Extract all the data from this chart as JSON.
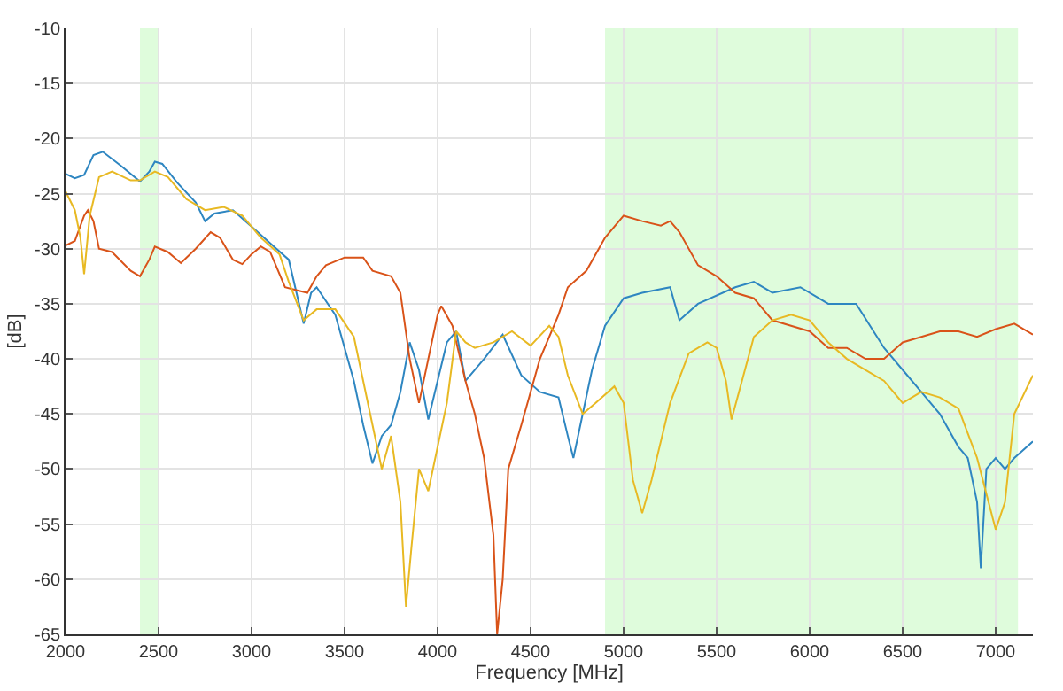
{
  "chart_data": {
    "type": "line",
    "xlabel": "Frequency [MHz]",
    "ylabel": "[dB]",
    "xlim": [
      2000,
      7200
    ],
    "xticks": [
      2000,
      2500,
      3000,
      3500,
      4000,
      4500,
      5000,
      5500,
      6000,
      6500,
      7000
    ],
    "ylim": [
      -65,
      -10
    ],
    "yticks": [
      -65,
      -60,
      -55,
      -50,
      -45,
      -40,
      -35,
      -30,
      -25,
      -20,
      -15,
      -10
    ],
    "grid": true,
    "marker": "none",
    "line_style": "solid",
    "bands": [
      {
        "axis": "x",
        "from": 2400,
        "to": 2500,
        "color": "#dffcdc"
      },
      {
        "axis": "x",
        "from": 4900,
        "to": 7120,
        "color": "#dffcdc"
      }
    ],
    "series": [
      {
        "color": "#2e86c1",
        "x": [
          2000,
          2050,
          2100,
          2150,
          2200,
          2300,
          2400,
          2450,
          2480,
          2520,
          2600,
          2700,
          2750,
          2800,
          2900,
          3000,
          3100,
          3200,
          3280,
          3320,
          3350,
          3450,
          3550,
          3600,
          3650,
          3700,
          3750,
          3800,
          3850,
          3900,
          3950,
          4000,
          4050,
          4100,
          4150,
          4250,
          4350,
          4450,
          4550,
          4650,
          4700,
          4730,
          4780,
          4830,
          4900,
          5000,
          5100,
          5250,
          5300,
          5400,
          5600,
          5700,
          5800,
          5950,
          6100,
          6250,
          6400,
          6500,
          6600,
          6700,
          6800,
          6850,
          6900,
          6920,
          6950,
          7000,
          7050,
          7100,
          7200
        ],
        "values": [
          -23.2,
          -23.6,
          -23.3,
          -21.5,
          -21.2,
          -22.5,
          -23.9,
          -23,
          -22.1,
          -22.3,
          -24,
          -25.8,
          -27.5,
          -26.8,
          -26.5,
          -28,
          -29.5,
          -31,
          -36.8,
          -34,
          -33.5,
          -36,
          -42,
          -46,
          -49.5,
          -47,
          -46,
          -43,
          -38.5,
          -41,
          -45.5,
          -42,
          -38.5,
          -37.5,
          -42,
          -40,
          -37.8,
          -41.5,
          -43,
          -43.5,
          -47,
          -49,
          -45,
          -41,
          -37,
          -34.5,
          -34,
          -33.5,
          -36.5,
          -35,
          -33.5,
          -33,
          -34,
          -33.5,
          -35,
          -35,
          -39,
          -41,
          -43,
          -45,
          -48,
          -49,
          -53,
          -59,
          -50,
          -49,
          -50,
          -49,
          -47.5
        ]
      },
      {
        "color": "#d95319",
        "x": [
          2000,
          2050,
          2100,
          2120,
          2150,
          2180,
          2250,
          2350,
          2400,
          2450,
          2480,
          2550,
          2620,
          2700,
          2780,
          2830,
          2900,
          2950,
          3000,
          3050,
          3100,
          3180,
          3250,
          3300,
          3350,
          3400,
          3500,
          3600,
          3650,
          3750,
          3800,
          3850,
          3900,
          3950,
          4000,
          4020,
          4080,
          4150,
          4200,
          4250,
          4300,
          4320,
          4350,
          4380,
          4450,
          4500,
          4550,
          4650,
          4700,
          4800,
          4900,
          5000,
          5100,
          5200,
          5250,
          5300,
          5400,
          5500,
          5600,
          5700,
          5800,
          5900,
          6000,
          6100,
          6200,
          6300,
          6400,
          6500,
          6600,
          6700,
          6800,
          6900,
          7000,
          7100,
          7200
        ],
        "values": [
          -29.7,
          -29.3,
          -27,
          -26.5,
          -27.5,
          -30,
          -30.3,
          -32,
          -32.5,
          -31,
          -29.8,
          -30.3,
          -31.3,
          -30,
          -28.5,
          -29,
          -31,
          -31.4,
          -30.5,
          -29.8,
          -30.3,
          -33.5,
          -33.8,
          -34,
          -32.5,
          -31.5,
          -30.8,
          -30.8,
          -32,
          -32.5,
          -34,
          -40,
          -44,
          -40,
          -36,
          -35.2,
          -37,
          -42,
          -45,
          -49,
          -56,
          -65,
          -60,
          -50,
          -46,
          -43,
          -40,
          -36,
          -33.5,
          -32,
          -29,
          -27,
          -27.5,
          -27.9,
          -27.5,
          -28.5,
          -31.5,
          -32.5,
          -34,
          -34.5,
          -36.5,
          -37,
          -37.5,
          -39,
          -39,
          -40,
          -40,
          -38.5,
          -38,
          -37.5,
          -37.5,
          -38,
          -37.3,
          -36.8,
          -37.8
        ]
      },
      {
        "color": "#e8b923",
        "x": [
          2000,
          2050,
          2080,
          2100,
          2130,
          2180,
          2250,
          2350,
          2400,
          2480,
          2550,
          2650,
          2750,
          2850,
          2950,
          3050,
          3150,
          3200,
          3280,
          3350,
          3450,
          3550,
          3600,
          3650,
          3700,
          3750,
          3800,
          3830,
          3860,
          3900,
          3950,
          4000,
          4050,
          4100,
          4150,
          4200,
          4300,
          4400,
          4500,
          4600,
          4650,
          4700,
          4780,
          4850,
          4950,
          5000,
          5050,
          5100,
          5150,
          5250,
          5350,
          5450,
          5500,
          5550,
          5580,
          5620,
          5700,
          5800,
          5900,
          6000,
          6100,
          6200,
          6300,
          6400,
          6500,
          6600,
          6700,
          6800,
          6900,
          7000,
          7050,
          7100,
          7200
        ],
        "values": [
          -24.8,
          -26.5,
          -29,
          -32.3,
          -27,
          -23.5,
          -23,
          -23.8,
          -23.8,
          -23,
          -23.5,
          -25.5,
          -26.5,
          -26.2,
          -27,
          -29,
          -30.5,
          -33,
          -36.5,
          -35.5,
          -35.5,
          -38,
          -42,
          -46,
          -50,
          -47,
          -53,
          -62.5,
          -57,
          -50,
          -52,
          -48,
          -44,
          -37.5,
          -38.5,
          -39,
          -38.5,
          -37.5,
          -38.8,
          -37,
          -38,
          -41.5,
          -45,
          -44,
          -42.5,
          -44,
          -51,
          -54,
          -51,
          -44,
          -39.5,
          -38.5,
          -39,
          -42,
          -45.5,
          -43,
          -38,
          -36.5,
          -36,
          -36.5,
          -38.5,
          -40,
          -41,
          -42,
          -44,
          -43,
          -43.5,
          -44.5,
          -49,
          -55.5,
          -53,
          -45,
          -41.5
        ]
      }
    ]
  }
}
